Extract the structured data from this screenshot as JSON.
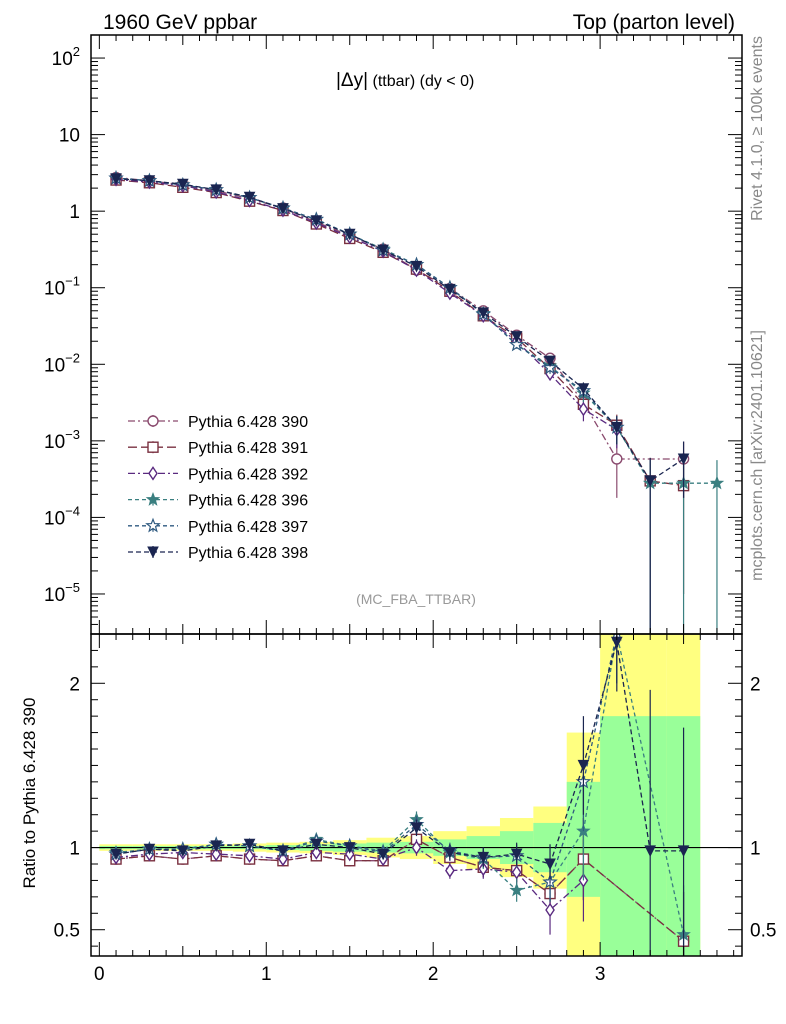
{
  "header": {
    "left": "1960 GeV ppbar",
    "right": "Top (parton level)"
  },
  "side_labels": {
    "rivet": "Rivet 4.1.0, ≥ 100k events",
    "mcplots": "mcplots.cern.ch [arXiv:2401.10621]"
  },
  "plot_title": {
    "main": "|Δy|",
    "suffix": " (ttbar) (dy < 0)"
  },
  "watermark": "(MC_FBA_TTBAR)",
  "ratio_ylabel": "Ratio to Pythia 6.428 390",
  "colors": {
    "band_yellow": "#ffff80",
    "band_green": "#99ff99"
  },
  "chart_data": {
    "type": "line",
    "x": [
      0.1,
      0.3,
      0.5,
      0.7,
      0.9,
      1.1,
      1.3,
      1.5,
      1.7,
      1.9,
      2.1,
      2.3,
      2.5,
      2.7,
      2.9,
      3.1,
      3.3,
      3.5,
      3.7
    ],
    "xlim": [
      -0.05,
      3.85
    ],
    "xticks": [
      "0",
      "1",
      "2",
      "3"
    ],
    "xtick_values": [
      0,
      1,
      2,
      3
    ],
    "main": {
      "yscale": "log",
      "ylim": [
        3e-06,
        200
      ],
      "ytick_values": [
        1e-05,
        0.0001,
        0.001,
        0.01,
        0.1,
        1,
        10,
        100
      ],
      "ytick_labels": [
        {
          "base": "10",
          "exp": "−5"
        },
        {
          "base": "10",
          "exp": "−4"
        },
        {
          "base": "10",
          "exp": "−3"
        },
        {
          "base": "10",
          "exp": "−2"
        },
        {
          "base": "10",
          "exp": "−1"
        },
        {
          "base": "1",
          "exp": ""
        },
        {
          "base": "10",
          "exp": ""
        },
        {
          "base": "10",
          "exp": "2"
        }
      ],
      "series": [
        {
          "name": "Pythia 6.428 390",
          "color": "#8a4a6e",
          "marker": "circle-open",
          "dash": "7,3,2,3",
          "values": [
            2.75,
            2.5,
            2.2,
            1.85,
            1.45,
            1.1,
            0.72,
            0.48,
            0.32,
            0.17,
            0.098,
            0.05,
            0.024,
            0.012,
            0.0032,
            0.00058,
            null,
            0.00058,
            null
          ],
          "errs": [
            0.05,
            0.04,
            0.04,
            0.03,
            0.03,
            0.02,
            0.015,
            0.01,
            0.008,
            0.005,
            0.004,
            0.003,
            0.002,
            0.0015,
            0.0008,
            0.0004,
            null,
            0.0004,
            null
          ]
        },
        {
          "name": "Pythia 6.428 391",
          "color": "#7a3040",
          "marker": "square-open",
          "dash": "9,4",
          "values": [
            2.55,
            2.35,
            2.05,
            1.75,
            1.35,
            1.02,
            0.68,
            0.44,
            0.29,
            0.175,
            0.09,
            0.043,
            0.022,
            0.0088,
            0.003,
            0.0016,
            0.0003,
            0.00026,
            null
          ],
          "errs": [
            0.05,
            0.04,
            0.04,
            0.03,
            0.03,
            0.02,
            0.015,
            0.01,
            0.008,
            0.005,
            0.004,
            0.003,
            0.002,
            0.0012,
            0.0008,
            0.0006,
            0.0003,
            0.00025,
            null
          ]
        },
        {
          "name": "Pythia 6.428 392",
          "color": "#5a2a80",
          "marker": "diamond-open",
          "dash": "7,3,2,3",
          "values": [
            2.6,
            2.4,
            2.15,
            1.78,
            1.38,
            1.03,
            0.7,
            0.46,
            0.3,
            0.17,
            0.085,
            0.043,
            0.02,
            0.0075,
            0.0026,
            0.0014,
            null,
            null,
            null
          ],
          "errs": [
            0.05,
            0.04,
            0.04,
            0.03,
            0.03,
            0.02,
            0.015,
            0.01,
            0.008,
            0.005,
            0.004,
            0.003,
            0.002,
            0.0012,
            0.0008,
            0.0006,
            null,
            null,
            null
          ]
        },
        {
          "name": "Pythia 6.428 396",
          "color": "#3a7f80",
          "marker": "star-filled",
          "dash": "4,3",
          "values": [
            2.7,
            2.5,
            2.2,
            1.9,
            1.5,
            1.08,
            0.78,
            0.5,
            0.32,
            0.2,
            0.1,
            0.046,
            0.018,
            0.0095,
            0.0042,
            0.0015,
            0.00028,
            0.00028,
            0.00028
          ],
          "errs": [
            0.05,
            0.04,
            0.04,
            0.03,
            0.03,
            0.02,
            0.015,
            0.01,
            0.008,
            0.005,
            0.004,
            0.003,
            0.002,
            0.0015,
            0.001,
            0.0006,
            0.00028,
            0.00028,
            0.00028
          ]
        },
        {
          "name": "Pythia 6.428 397",
          "color": "#2f5a80",
          "marker": "star-open",
          "dash": "4,3",
          "values": [
            2.7,
            2.5,
            2.2,
            1.9,
            1.5,
            1.1,
            0.78,
            0.5,
            0.31,
            0.2,
            0.1,
            0.045,
            0.018,
            0.009,
            0.0045,
            0.0015,
            null,
            null,
            null
          ],
          "errs": [
            0.05,
            0.04,
            0.04,
            0.03,
            0.03,
            0.02,
            0.015,
            0.01,
            0.008,
            0.005,
            0.004,
            0.003,
            0.002,
            0.0015,
            0.001,
            0.0006,
            null,
            null,
            null
          ]
        },
        {
          "name": "Pythia 6.428 398",
          "color": "#1a2550",
          "marker": "triangle-down-filled",
          "dash": "5,3",
          "values": [
            2.65,
            2.5,
            2.25,
            1.9,
            1.52,
            1.08,
            0.75,
            0.5,
            0.31,
            0.19,
            0.095,
            0.047,
            0.023,
            0.011,
            0.0048,
            0.0015,
            0.0003,
            0.00058,
            null
          ],
          "errs": [
            0.05,
            0.04,
            0.04,
            0.03,
            0.03,
            0.02,
            0.015,
            0.01,
            0.008,
            0.005,
            0.004,
            0.003,
            0.002,
            0.0015,
            0.001,
            0.0006,
            0.0003,
            0.0004,
            null
          ]
        }
      ]
    },
    "ratio": {
      "ylabel": "Ratio to Pythia 6.428 390",
      "ylim": [
        0.34,
        2.3
      ],
      "ytick_values": [
        0.5,
        1,
        2
      ],
      "ytick_labels": [
        "0.5",
        "1",
        "2"
      ],
      "band_edges": [
        0,
        0.2,
        0.4,
        0.6,
        0.8,
        1.0,
        1.2,
        1.4,
        1.6,
        1.8,
        2.0,
        2.2,
        2.4,
        2.6,
        2.8,
        3.0,
        3.2,
        3.4,
        3.6
      ],
      "band_yellow": [
        [
          0.98,
          1.02
        ],
        [
          0.98,
          1.02
        ],
        [
          0.98,
          1.02
        ],
        [
          0.98,
          1.02
        ],
        [
          0.975,
          1.025
        ],
        [
          0.97,
          1.03
        ],
        [
          0.965,
          1.035
        ],
        [
          0.955,
          1.045
        ],
        [
          0.94,
          1.06
        ],
        [
          0.93,
          1.07
        ],
        [
          0.9,
          1.1
        ],
        [
          0.87,
          1.13
        ],
        [
          0.82,
          1.18
        ],
        [
          0.75,
          1.25
        ],
        [
          0.34,
          1.7
        ],
        [
          0.34,
          2.3
        ],
        [
          0.34,
          2.3
        ],
        [
          0.34,
          2.3
        ]
      ],
      "band_green": [
        [
          0.99,
          1.01
        ],
        [
          0.99,
          1.01
        ],
        [
          0.99,
          1.01
        ],
        [
          0.99,
          1.01
        ],
        [
          0.99,
          1.01
        ],
        [
          0.985,
          1.015
        ],
        [
          0.98,
          1.02
        ],
        [
          0.975,
          1.025
        ],
        [
          0.97,
          1.03
        ],
        [
          0.965,
          1.035
        ],
        [
          0.95,
          1.05
        ],
        [
          0.93,
          1.07
        ],
        [
          0.9,
          1.1
        ],
        [
          0.85,
          1.15
        ],
        [
          0.7,
          1.4
        ],
        [
          0.34,
          1.8
        ],
        [
          0.34,
          1.8
        ],
        [
          0.34,
          1.8
        ]
      ],
      "series": [
        {
          "name": "Pythia 6.428 390",
          "values": [
            0.93,
            0.95,
            0.93,
            0.95,
            0.93,
            0.92,
            0.95,
            0.92,
            0.92,
            1.05,
            0.94,
            0.88,
            0.86,
            0.72,
            0.93,
            null,
            null,
            0.43,
            null
          ],
          "errs": [
            0.02,
            0.02,
            0.02,
            0.02,
            0.02,
            0.02,
            0.02,
            0.02,
            0.03,
            0.05,
            0.05,
            0.06,
            0.07,
            0.1,
            0.25,
            null,
            null,
            0.3,
            null
          ]
        },
        {
          "name": "Pythia 6.428 391",
          "values": [
            0.93,
            0.95,
            0.93,
            0.95,
            0.93,
            0.92,
            0.95,
            0.92,
            0.92,
            1.05,
            0.94,
            0.88,
            0.86,
            0.72,
            0.93,
            null,
            null,
            0.43,
            null
          ],
          "errs": [
            0.02,
            0.02,
            0.02,
            0.02,
            0.02,
            0.02,
            0.02,
            0.02,
            0.03,
            0.05,
            0.05,
            0.06,
            0.07,
            0.1,
            0.25,
            null,
            null,
            0.3,
            null
          ]
        },
        {
          "name": "Pythia 6.428 392",
          "values": [
            0.94,
            0.96,
            0.97,
            0.96,
            0.95,
            0.93,
            0.97,
            0.96,
            0.93,
            1.0,
            0.86,
            0.87,
            0.85,
            0.62,
            0.8,
            null,
            null,
            null,
            null
          ],
          "errs": [
            0.02,
            0.02,
            0.02,
            0.02,
            0.02,
            0.02,
            0.02,
            0.02,
            0.03,
            0.05,
            0.05,
            0.06,
            0.07,
            0.15,
            0.25,
            null,
            null,
            null,
            null
          ]
        },
        {
          "name": "Pythia 6.428 396",
          "values": [
            0.97,
            0.99,
            0.99,
            1.02,
            1.01,
            0.98,
            1.05,
            1.01,
            0.98,
            1.17,
            0.97,
            0.93,
            0.74,
            0.79,
            1.1,
            2.3,
            null,
            0.47,
            null
          ],
          "errs": [
            0.02,
            0.02,
            0.02,
            0.02,
            0.02,
            0.02,
            0.02,
            0.02,
            0.03,
            0.05,
            0.05,
            0.06,
            0.07,
            0.12,
            0.3,
            0.3,
            null,
            0.3,
            null
          ]
        },
        {
          "name": "Pythia 6.428 397",
          "values": [
            0.96,
            0.99,
            0.99,
            1.02,
            1.01,
            0.98,
            1.04,
            1.01,
            0.97,
            1.14,
            0.98,
            0.94,
            0.95,
            0.79,
            1.4,
            2.3,
            null,
            null,
            null
          ],
          "errs": [
            0.02,
            0.02,
            0.02,
            0.02,
            0.02,
            0.02,
            0.02,
            0.02,
            0.03,
            0.05,
            0.05,
            0.06,
            0.07,
            0.12,
            0.3,
            0.3,
            null,
            null,
            null
          ]
        },
        {
          "name": "Pythia 6.428 398",
          "values": [
            0.96,
            0.99,
            0.98,
            1.01,
            1.02,
            0.98,
            1.02,
            1.0,
            0.96,
            1.12,
            0.97,
            0.94,
            0.96,
            0.9,
            1.5,
            2.25,
            0.98,
            0.98,
            null
          ],
          "errs": [
            0.02,
            0.02,
            0.02,
            0.02,
            0.02,
            0.02,
            0.02,
            0.02,
            0.03,
            0.05,
            0.05,
            0.06,
            0.07,
            0.12,
            0.3,
            0.3,
            0.98,
            0.75,
            null
          ]
        }
      ]
    }
  }
}
